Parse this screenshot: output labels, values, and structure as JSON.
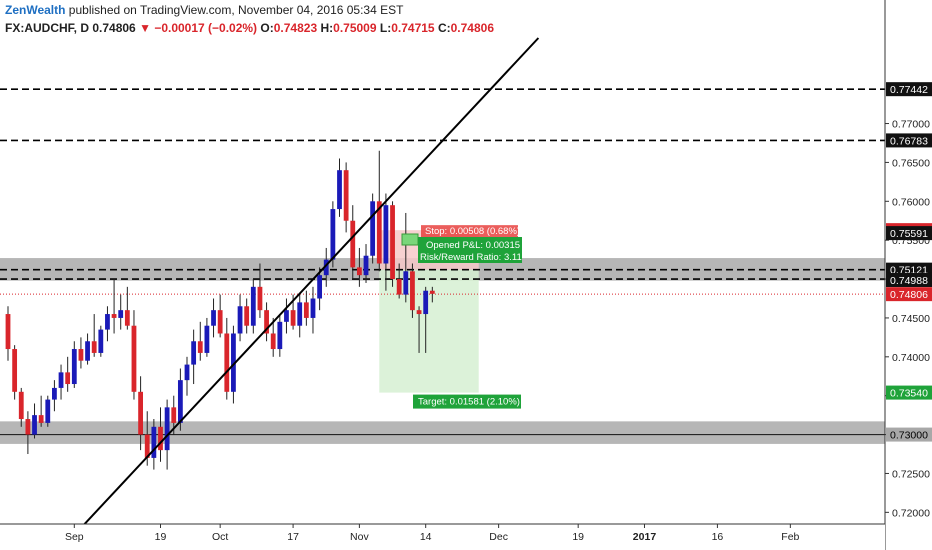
{
  "header": {
    "brand": "ZenWealth",
    "published": "published on TradingView.com, November 04, 2016 05:34 EST",
    "symbol": "FX:AUDCHF, D",
    "last": "0.74806",
    "change_arrow": "▼",
    "change": "−0.00017 (−0.02%)",
    "o_label": "O:",
    "o": "0.74823",
    "h_label": "H:",
    "h": "0.75009",
    "l_label": "L:",
    "l": "0.74715",
    "c_label": "C:",
    "c": "0.74806"
  },
  "colors": {
    "up": "#1a1ab8",
    "down": "#d9252b",
    "zone": "#9e9e9e",
    "stop_zone": "#f6c9c9",
    "target_zone": "#d6f0d2",
    "label_green": "#1fa33a",
    "label_red": "#e8423f",
    "trendline": "#000000"
  },
  "chart_data": {
    "type": "candlestick",
    "y_axis": {
      "range": [
        0.7185,
        0.781
      ],
      "ticks": [
        "0.77000",
        "0.76500",
        "0.76000",
        "0.75500",
        "0.75000",
        "0.74500",
        "0.74000",
        "0.73500",
        "0.73000",
        "0.72500",
        "0.72000"
      ]
    },
    "x_axis": {
      "ticks": [
        {
          "label": "Sep",
          "bar": 10
        },
        {
          "label": "19",
          "bar": 23
        },
        {
          "label": "Oct",
          "bar": 32
        },
        {
          "label": "17",
          "bar": 43
        },
        {
          "label": "Nov",
          "bar": 53
        },
        {
          "label": "14",
          "bar": 63
        },
        {
          "label": "Dec",
          "bar": 74
        },
        {
          "label": "19",
          "bar": 86
        },
        {
          "label": "2017",
          "bar": 96
        },
        {
          "label": "16",
          "bar": 107
        },
        {
          "label": "Feb",
          "bar": 118
        }
      ]
    },
    "price_labels": [
      {
        "text": "0.77442",
        "value": 0.77442,
        "style": "black"
      },
      {
        "text": "0.76783",
        "value": 0.76783,
        "style": "black"
      },
      {
        "text": "0.75629",
        "value": 0.75629,
        "style": "red"
      },
      {
        "text": "0.75591",
        "value": 0.75591,
        "style": "black"
      },
      {
        "text": "0.75121",
        "value": 0.75121,
        "style": "black"
      },
      {
        "text": "0.74988",
        "value": 0.74988,
        "style": "black"
      },
      {
        "text": "0.74806",
        "value": 0.74806,
        "style": "red"
      },
      {
        "text": "0.73540",
        "value": 0.7354,
        "style": "green"
      },
      {
        "text": "0.73000",
        "value": 0.73,
        "style": "zone"
      }
    ],
    "horizontal_lines": [
      {
        "value": 0.77442,
        "style": "dashed"
      },
      {
        "value": 0.76783,
        "style": "dashed"
      },
      {
        "value": 0.75121,
        "style": "dashed"
      },
      {
        "value": 0.75,
        "style": "dashed"
      },
      {
        "value": 0.73,
        "style": "solid"
      },
      {
        "value": 0.74806,
        "style": "dotted-red"
      }
    ],
    "zones": [
      {
        "top": 0.7527,
        "bottom": 0.7498
      },
      {
        "top": 0.7317,
        "bottom": 0.7288
      }
    ],
    "trendline": {
      "bar1": 11,
      "price1": 0.718,
      "bar2": 80,
      "price2": 0.781
    },
    "position": {
      "bar_start": 56,
      "bar_end": 71,
      "entry": 0.75121,
      "stop": 0.75629,
      "target": 0.7354,
      "stop_label": "Stop: 0.00508 (0.68%)",
      "pnl_label": "Opened P&L: 0.00315",
      "rr_label": "Risk/Reward Ratio: 3.11",
      "target_label": "Target: 0.01581 (2.10%)"
    },
    "candles": [
      {
        "o": 0.7455,
        "h": 0.7465,
        "l": 0.7395,
        "c": 0.741
      },
      {
        "o": 0.741,
        "h": 0.7415,
        "l": 0.7345,
        "c": 0.7355
      },
      {
        "o": 0.7355,
        "h": 0.736,
        "l": 0.731,
        "c": 0.732
      },
      {
        "o": 0.732,
        "h": 0.733,
        "l": 0.7275,
        "c": 0.73
      },
      {
        "o": 0.73,
        "h": 0.734,
        "l": 0.7295,
        "c": 0.7325
      },
      {
        "o": 0.7325,
        "h": 0.735,
        "l": 0.731,
        "c": 0.7315
      },
      {
        "o": 0.7315,
        "h": 0.735,
        "l": 0.731,
        "c": 0.7345
      },
      {
        "o": 0.7345,
        "h": 0.737,
        "l": 0.733,
        "c": 0.736
      },
      {
        "o": 0.736,
        "h": 0.739,
        "l": 0.7345,
        "c": 0.738
      },
      {
        "o": 0.738,
        "h": 0.74,
        "l": 0.7355,
        "c": 0.7365
      },
      {
        "o": 0.7365,
        "h": 0.742,
        "l": 0.736,
        "c": 0.741
      },
      {
        "o": 0.741,
        "h": 0.7425,
        "l": 0.7385,
        "c": 0.7395
      },
      {
        "o": 0.7395,
        "h": 0.743,
        "l": 0.739,
        "c": 0.742
      },
      {
        "o": 0.742,
        "h": 0.7455,
        "l": 0.74,
        "c": 0.7405
      },
      {
        "o": 0.7405,
        "h": 0.744,
        "l": 0.74,
        "c": 0.7435
      },
      {
        "o": 0.7435,
        "h": 0.7465,
        "l": 0.742,
        "c": 0.7455
      },
      {
        "o": 0.7455,
        "h": 0.75,
        "l": 0.743,
        "c": 0.745
      },
      {
        "o": 0.745,
        "h": 0.748,
        "l": 0.7435,
        "c": 0.746
      },
      {
        "o": 0.746,
        "h": 0.749,
        "l": 0.7435,
        "c": 0.744
      },
      {
        "o": 0.744,
        "h": 0.746,
        "l": 0.7345,
        "c": 0.7355
      },
      {
        "o": 0.7355,
        "h": 0.7375,
        "l": 0.728,
        "c": 0.73
      },
      {
        "o": 0.73,
        "h": 0.733,
        "l": 0.726,
        "c": 0.727
      },
      {
        "o": 0.727,
        "h": 0.732,
        "l": 0.7255,
        "c": 0.731
      },
      {
        "o": 0.731,
        "h": 0.7335,
        "l": 0.7265,
        "c": 0.728
      },
      {
        "o": 0.728,
        "h": 0.7345,
        "l": 0.7255,
        "c": 0.7335
      },
      {
        "o": 0.7335,
        "h": 0.735,
        "l": 0.73,
        "c": 0.7315
      },
      {
        "o": 0.7315,
        "h": 0.7385,
        "l": 0.7305,
        "c": 0.737
      },
      {
        "o": 0.737,
        "h": 0.74,
        "l": 0.735,
        "c": 0.739
      },
      {
        "o": 0.739,
        "h": 0.7435,
        "l": 0.7365,
        "c": 0.742
      },
      {
        "o": 0.742,
        "h": 0.7445,
        "l": 0.7395,
        "c": 0.7405
      },
      {
        "o": 0.7405,
        "h": 0.745,
        "l": 0.74,
        "c": 0.744
      },
      {
        "o": 0.744,
        "h": 0.7475,
        "l": 0.7425,
        "c": 0.746
      },
      {
        "o": 0.746,
        "h": 0.748,
        "l": 0.7425,
        "c": 0.743
      },
      {
        "o": 0.743,
        "h": 0.745,
        "l": 0.7345,
        "c": 0.7355
      },
      {
        "o": 0.7355,
        "h": 0.744,
        "l": 0.734,
        "c": 0.743
      },
      {
        "o": 0.743,
        "h": 0.748,
        "l": 0.742,
        "c": 0.7465
      },
      {
        "o": 0.7465,
        "h": 0.7475,
        "l": 0.743,
        "c": 0.744
      },
      {
        "o": 0.744,
        "h": 0.75,
        "l": 0.743,
        "c": 0.749
      },
      {
        "o": 0.749,
        "h": 0.752,
        "l": 0.745,
        "c": 0.746
      },
      {
        "o": 0.746,
        "h": 0.747,
        "l": 0.742,
        "c": 0.743
      },
      {
        "o": 0.743,
        "h": 0.745,
        "l": 0.74,
        "c": 0.741
      },
      {
        "o": 0.741,
        "h": 0.7455,
        "l": 0.74,
        "c": 0.7445
      },
      {
        "o": 0.7445,
        "h": 0.7475,
        "l": 0.743,
        "c": 0.746
      },
      {
        "o": 0.746,
        "h": 0.748,
        "l": 0.7435,
        "c": 0.744
      },
      {
        "o": 0.744,
        "h": 0.748,
        "l": 0.7425,
        "c": 0.747
      },
      {
        "o": 0.747,
        "h": 0.7485,
        "l": 0.744,
        "c": 0.745
      },
      {
        "o": 0.745,
        "h": 0.749,
        "l": 0.743,
        "c": 0.7475
      },
      {
        "o": 0.7475,
        "h": 0.7515,
        "l": 0.746,
        "c": 0.7505
      },
      {
        "o": 0.7505,
        "h": 0.754,
        "l": 0.749,
        "c": 0.7525
      },
      {
        "o": 0.7525,
        "h": 0.76,
        "l": 0.7515,
        "c": 0.759
      },
      {
        "o": 0.759,
        "h": 0.7655,
        "l": 0.758,
        "c": 0.764
      },
      {
        "o": 0.764,
        "h": 0.765,
        "l": 0.756,
        "c": 0.7575
      },
      {
        "o": 0.7575,
        "h": 0.7595,
        "l": 0.75,
        "c": 0.7515
      },
      {
        "o": 0.7515,
        "h": 0.754,
        "l": 0.749,
        "c": 0.7505
      },
      {
        "o": 0.7505,
        "h": 0.7545,
        "l": 0.7495,
        "c": 0.753
      },
      {
        "o": 0.753,
        "h": 0.761,
        "l": 0.752,
        "c": 0.76
      },
      {
        "o": 0.76,
        "h": 0.7665,
        "l": 0.751,
        "c": 0.752
      },
      {
        "o": 0.752,
        "h": 0.761,
        "l": 0.7485,
        "c": 0.7595
      },
      {
        "o": 0.7595,
        "h": 0.76,
        "l": 0.749,
        "c": 0.75
      },
      {
        "o": 0.75,
        "h": 0.752,
        "l": 0.7475,
        "c": 0.748
      },
      {
        "o": 0.748,
        "h": 0.7585,
        "l": 0.747,
        "c": 0.751
      },
      {
        "o": 0.751,
        "h": 0.752,
        "l": 0.745,
        "c": 0.746
      },
      {
        "o": 0.746,
        "h": 0.7465,
        "l": 0.7405,
        "c": 0.7455
      },
      {
        "o": 0.7455,
        "h": 0.749,
        "l": 0.7405,
        "c": 0.7485
      },
      {
        "o": 0.7485,
        "h": 0.749,
        "l": 0.747,
        "c": 0.7481
      }
    ]
  }
}
